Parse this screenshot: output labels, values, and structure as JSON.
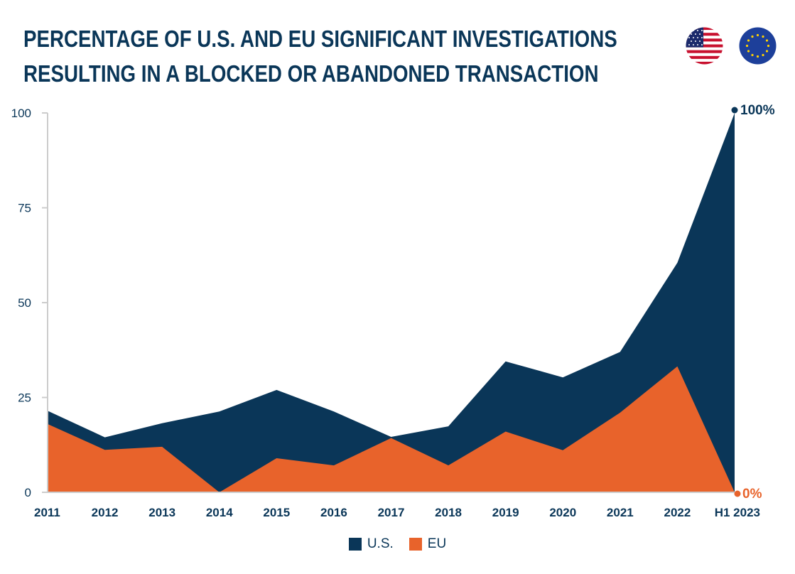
{
  "title_line1": "PERCENTAGE OF U.S. AND EU SIGNIFICANT INVESTIGATIONS",
  "title_line2": "RESULTING IN A BLOCKED OR ABANDONED TRANSACTION",
  "icons": {
    "us": "us-flag-icon",
    "eu": "eu-flag-icon"
  },
  "colors": {
    "us": "#0a3658",
    "eu": "#e8632b",
    "axis": "#cccccc",
    "text": "#0a3658"
  },
  "legend": [
    {
      "label": "U.S.",
      "color": "#0a3658"
    },
    {
      "label": "EU",
      "color": "#e8632b"
    }
  ],
  "end_labels": {
    "us": "100%",
    "eu": "0%"
  },
  "chart_data": {
    "type": "area",
    "categories": [
      "2011",
      "2012",
      "2013",
      "2014",
      "2015",
      "2016",
      "2017",
      "2018",
      "2019",
      "2020",
      "2021",
      "2022",
      "H1 2023"
    ],
    "series": [
      {
        "name": "U.S.",
        "values": [
          21.5,
          14.5,
          18.2,
          21.3,
          27,
          21.3,
          14.6,
          17.4,
          34.5,
          30.3,
          37,
          60.5,
          100
        ]
      },
      {
        "name": "EU",
        "values": [
          18,
          11.2,
          12,
          0,
          9,
          7.1,
          14.3,
          7.1,
          16,
          11.1,
          21,
          33.2,
          0
        ]
      }
    ],
    "ylim": [
      0,
      100
    ],
    "yticks": [
      0,
      25,
      50,
      75,
      100
    ],
    "grid": false,
    "legend_position": "bottom"
  }
}
